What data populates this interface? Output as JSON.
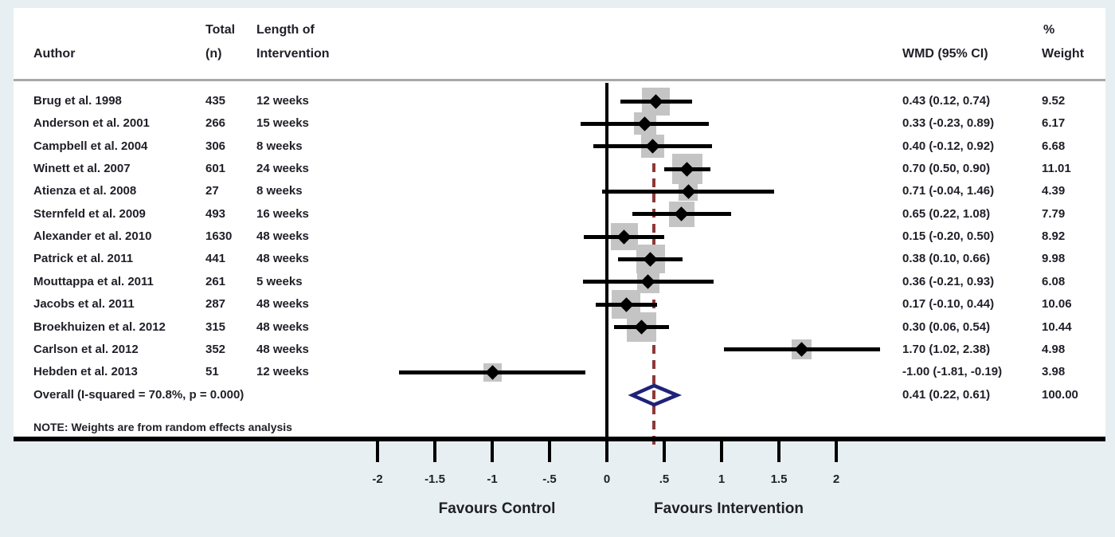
{
  "table": {
    "headers": {
      "author": "Author",
      "total_line1": "Total",
      "total_line2": "(n)",
      "length_line1": "Length of",
      "length_line2": "Intervention",
      "wmd": "WMD (95% CI)",
      "weight_line1": "%",
      "weight_line2": "Weight"
    },
    "note": "NOTE: Weights are from random effects analysis"
  },
  "chart_data": {
    "type": "forest",
    "effect_measure": "WMD",
    "studies": [
      {
        "author": "Brug et al. 1998",
        "n": "435",
        "length": "12 weeks",
        "wmd": 0.43,
        "ci_low": 0.12,
        "ci_high": 0.74,
        "wmd_ci_label": "0.43 (0.12, 0.74)",
        "weight": 9.52,
        "weight_label": "9.52"
      },
      {
        "author": "Anderson et al. 2001",
        "n": "266",
        "length": "15 weeks",
        "wmd": 0.33,
        "ci_low": -0.23,
        "ci_high": 0.89,
        "wmd_ci_label": "0.33 (-0.23, 0.89)",
        "weight": 6.17,
        "weight_label": "6.17"
      },
      {
        "author": "Campbell et al. 2004",
        "n": "306",
        "length": "8 weeks",
        "wmd": 0.4,
        "ci_low": -0.12,
        "ci_high": 0.92,
        "wmd_ci_label": "0.40 (-0.12, 0.92)",
        "weight": 6.68,
        "weight_label": "6.68"
      },
      {
        "author": "Winett et al. 2007",
        "n": "601",
        "length": "24 weeks",
        "wmd": 0.7,
        "ci_low": 0.5,
        "ci_high": 0.9,
        "wmd_ci_label": "0.70 (0.50, 0.90)",
        "weight": 11.01,
        "weight_label": "11.01"
      },
      {
        "author": "Atienza et al. 2008",
        "n": "27",
        "length": "8 weeks",
        "wmd": 0.71,
        "ci_low": -0.04,
        "ci_high": 1.46,
        "wmd_ci_label": "0.71 (-0.04, 1.46)",
        "weight": 4.39,
        "weight_label": "4.39"
      },
      {
        "author": "Sternfeld et al. 2009",
        "n": "493",
        "length": "16 weeks",
        "wmd": 0.65,
        "ci_low": 0.22,
        "ci_high": 1.08,
        "wmd_ci_label": "0.65 (0.22, 1.08)",
        "weight": 7.79,
        "weight_label": "7.79"
      },
      {
        "author": "Alexander et al. 2010",
        "n": "1630",
        "length": "48 weeks",
        "wmd": 0.15,
        "ci_low": -0.2,
        "ci_high": 0.5,
        "wmd_ci_label": "0.15 (-0.20, 0.50)",
        "weight": 8.92,
        "weight_label": "8.92"
      },
      {
        "author": "Patrick et al. 2011",
        "n": "441",
        "length": "48 weeks",
        "wmd": 0.38,
        "ci_low": 0.1,
        "ci_high": 0.66,
        "wmd_ci_label": "0.38 (0.10, 0.66)",
        "weight": 9.98,
        "weight_label": "9.98"
      },
      {
        "author": "Mouttappa et al. 2011",
        "n": "261",
        "length": "5 weeks",
        "wmd": 0.36,
        "ci_low": -0.21,
        "ci_high": 0.93,
        "wmd_ci_label": "0.36 (-0.21, 0.93)",
        "weight": 6.08,
        "weight_label": "6.08"
      },
      {
        "author": "Jacobs et al. 2011",
        "n": "287",
        "length": "48 weeks",
        "wmd": 0.17,
        "ci_low": -0.1,
        "ci_high": 0.44,
        "wmd_ci_label": "0.17 (-0.10, 0.44)",
        "weight": 10.06,
        "weight_label": "10.06"
      },
      {
        "author": "Broekhuizen et al. 2012",
        "n": "315",
        "length": "48 weeks",
        "wmd": 0.3,
        "ci_low": 0.06,
        "ci_high": 0.54,
        "wmd_ci_label": "0.30 (0.06, 0.54)",
        "weight": 10.44,
        "weight_label": "10.44"
      },
      {
        "author": "Carlson et al. 2012",
        "n": "352",
        "length": "48 weeks",
        "wmd": 1.7,
        "ci_low": 1.02,
        "ci_high": 2.38,
        "wmd_ci_label": "1.70 (1.02, 2.38)",
        "weight": 4.98,
        "weight_label": "4.98"
      },
      {
        "author": "Hebden et al. 2013",
        "n": "51",
        "length": "12 weeks",
        "wmd": -1.0,
        "ci_low": -1.81,
        "ci_high": -0.19,
        "wmd_ci_label": "-1.00 (-1.81, -0.19)",
        "weight": 3.98,
        "weight_label": "3.98"
      }
    ],
    "overall": {
      "label": "Overall  (I-squared = 70.8%, p = 0.000)",
      "wmd": 0.41,
      "ci_low": 0.22,
      "ci_high": 0.61,
      "wmd_ci_label": "0.41 (0.22, 0.61)",
      "weight_label": "100.00",
      "heterogeneity_i_squared": "70.8%",
      "heterogeneity_p": "0.000"
    },
    "axis": {
      "ticks": [
        {
          "value": -2,
          "label": "-2"
        },
        {
          "value": -1.5,
          "label": "-1.5"
        },
        {
          "value": -1,
          "label": "-1"
        },
        {
          "value": -0.5,
          "label": "-.5"
        },
        {
          "value": 0,
          "label": "0"
        },
        {
          "value": 0.5,
          "label": ".5"
        },
        {
          "value": 1,
          "label": "1"
        },
        {
          "value": 1.5,
          "label": "1.5"
        },
        {
          "value": 2,
          "label": "2"
        }
      ],
      "range": [
        -2,
        2
      ],
      "zero_line_value": 0,
      "overall_dashed_line_value": 0.41,
      "left_label": "Favours Control",
      "right_label": "Favours Intervention"
    },
    "legend_position": "none",
    "grid": false,
    "colors": {
      "background": "#e8eff2",
      "panel": "#ffffff",
      "text": "#1f1f28",
      "ci_line": "#000000",
      "weight_box": "#c4c4c4",
      "overall_diamond_outline": "#1e2278",
      "dashed_overall_line": "#8e3838",
      "header_separator": "#a8a8a8"
    }
  }
}
